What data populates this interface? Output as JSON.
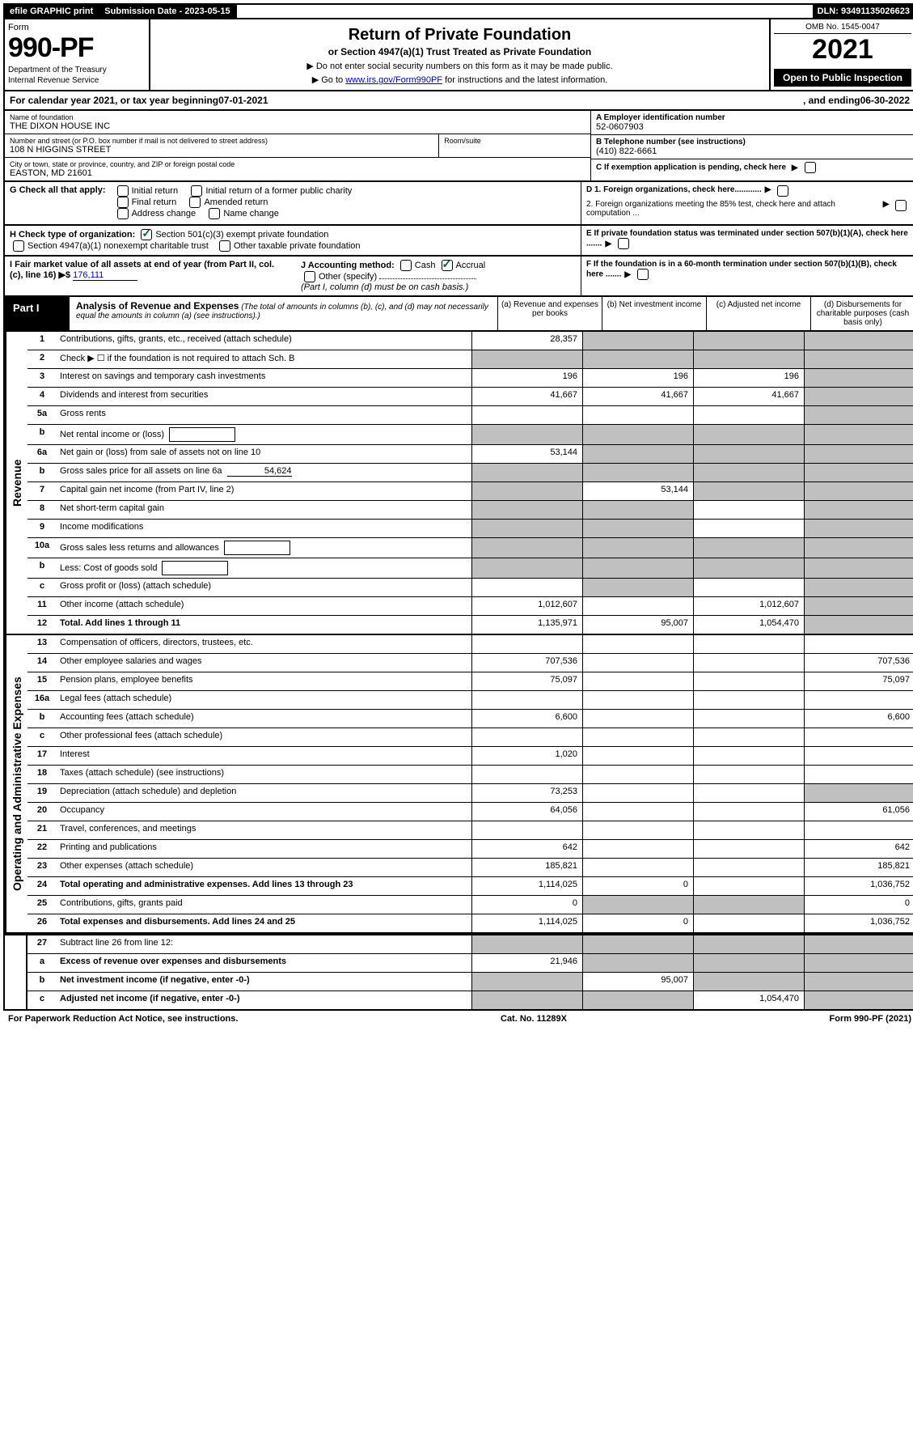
{
  "top_bar": {
    "efile": "efile GRAPHIC print",
    "submission": "Submission Date - 2023-05-15",
    "dln": "DLN: 93491135026623"
  },
  "header": {
    "form_label": "Form",
    "form_number": "990-PF",
    "dept1": "Department of the Treasury",
    "dept2": "Internal Revenue Service",
    "title": "Return of Private Foundation",
    "subtitle": "or Section 4947(a)(1) Trust Treated as Private Foundation",
    "instr1": "▶ Do not enter social security numbers on this form as it may be made public.",
    "instr2_pre": "▶ Go to ",
    "instr2_link": "www.irs.gov/Form990PF",
    "instr2_post": " for instructions and the latest information.",
    "omb": "OMB No. 1545-0047",
    "year": "2021",
    "open_public": "Open to Public Inspection"
  },
  "cal_year": {
    "text_pre": "For calendar year 2021, or tax year beginning ",
    "begin": "07-01-2021",
    "text_mid": " , and ending ",
    "end": "06-30-2022"
  },
  "foundation": {
    "name_label": "Name of foundation",
    "name": "THE DIXON HOUSE INC",
    "addr_label": "Number and street (or P.O. box number if mail is not delivered to street address)",
    "addr": "108 N HIGGINS STREET",
    "room_label": "Room/suite",
    "city_label": "City or town, state or province, country, and ZIP or foreign postal code",
    "city": "EASTON, MD  21601",
    "ein_label": "A Employer identification number",
    "ein": "52-0607903",
    "phone_label": "B Telephone number (see instructions)",
    "phone": "(410) 822-6661",
    "pending_label": "C If exemption application is pending, check here"
  },
  "g_section": {
    "label": "G Check all that apply:",
    "opts": [
      "Initial return",
      "Final return",
      "Address change",
      "Initial return of a former public charity",
      "Amended return",
      "Name change"
    ]
  },
  "d_section": {
    "d1": "D 1. Foreign organizations, check here............",
    "d2": "2. Foreign organizations meeting the 85% test, check here and attach computation ...",
    "e": "E If private foundation status was terminated under section 507(b)(1)(A), check here .......",
    "f": "F If the foundation is in a 60-month termination under section 507(b)(1)(B), check here ......."
  },
  "h_section": {
    "label": "H Check type of organization:",
    "opt1": "Section 501(c)(3) exempt private foundation",
    "opt2": "Section 4947(a)(1) nonexempt charitable trust",
    "opt3": "Other taxable private foundation"
  },
  "i_section": {
    "label": "I Fair market value of all assets at end of year (from Part II, col. (c), line 16) ▶$",
    "value": "176,111"
  },
  "j_section": {
    "label": "J Accounting method:",
    "cash": "Cash",
    "accrual": "Accrual",
    "other": "Other (specify)",
    "note": "(Part I, column (d) must be on cash basis.)"
  },
  "part1": {
    "label": "Part I",
    "title": "Analysis of Revenue and Expenses",
    "title_note": " (The total of amounts in columns (b), (c), and (d) may not necessarily equal the amounts in column (a) (see instructions).)",
    "col_a": "(a) Revenue and expenses per books",
    "col_b": "(b) Net investment income",
    "col_c": "(c) Adjusted net income",
    "col_d": "(d) Disbursements for charitable purposes (cash basis only)"
  },
  "side_labels": {
    "revenue": "Revenue",
    "expenses": "Operating and Administrative Expenses"
  },
  "rows": [
    {
      "num": "1",
      "desc": "Contributions, gifts, grants, etc., received (attach schedule)",
      "a": "28,357",
      "b": "",
      "c": "",
      "d": "",
      "a_grey": false,
      "b_grey": true,
      "c_grey": true,
      "d_grey": true
    },
    {
      "num": "2",
      "desc": "Check ▶ ☐ if the foundation is not required to attach Sch. B",
      "a": "",
      "b": "",
      "c": "",
      "d": "",
      "a_grey": true,
      "b_grey": true,
      "c_grey": true,
      "d_grey": true,
      "dots": true
    },
    {
      "num": "3",
      "desc": "Interest on savings and temporary cash investments",
      "a": "196",
      "b": "196",
      "c": "196",
      "d": "",
      "d_grey": true
    },
    {
      "num": "4",
      "desc": "Dividends and interest from securities",
      "a": "41,667",
      "b": "41,667",
      "c": "41,667",
      "d": "",
      "d_grey": true,
      "dots": true
    },
    {
      "num": "5a",
      "desc": "Gross rents",
      "a": "",
      "b": "",
      "c": "",
      "d": "",
      "d_grey": true,
      "dots": true
    },
    {
      "num": "b",
      "desc": "Net rental income or (loss)",
      "a": "",
      "b": "",
      "c": "",
      "d": "",
      "a_grey": true,
      "b_grey": true,
      "c_grey": true,
      "d_grey": true,
      "inline_box": true
    },
    {
      "num": "6a",
      "desc": "Net gain or (loss) from sale of assets not on line 10",
      "a": "53,144",
      "b": "",
      "c": "",
      "d": "",
      "b_grey": true,
      "c_grey": true,
      "d_grey": true
    },
    {
      "num": "b",
      "desc": "Gross sales price for all assets on line 6a",
      "a": "",
      "b": "",
      "c": "",
      "d": "",
      "a_grey": true,
      "b_grey": true,
      "c_grey": true,
      "d_grey": true,
      "inline_val": "54,624"
    },
    {
      "num": "7",
      "desc": "Capital gain net income (from Part IV, line 2)",
      "a": "",
      "b": "53,144",
      "c": "",
      "d": "",
      "a_grey": true,
      "c_grey": true,
      "d_grey": true,
      "dots": true
    },
    {
      "num": "8",
      "desc": "Net short-term capital gain",
      "a": "",
      "b": "",
      "c": "",
      "d": "",
      "a_grey": true,
      "b_grey": true,
      "d_grey": true,
      "dots": true
    },
    {
      "num": "9",
      "desc": "Income modifications",
      "a": "",
      "b": "",
      "c": "",
      "d": "",
      "a_grey": true,
      "b_grey": true,
      "d_grey": true,
      "dots": true
    },
    {
      "num": "10a",
      "desc": "Gross sales less returns and allowances",
      "a": "",
      "b": "",
      "c": "",
      "d": "",
      "a_grey": true,
      "b_grey": true,
      "c_grey": true,
      "d_grey": true,
      "inline_box": true
    },
    {
      "num": "b",
      "desc": "Less: Cost of goods sold",
      "a": "",
      "b": "",
      "c": "",
      "d": "",
      "a_grey": true,
      "b_grey": true,
      "c_grey": true,
      "d_grey": true,
      "inline_box": true,
      "dots": true
    },
    {
      "num": "c",
      "desc": "Gross profit or (loss) (attach schedule)",
      "a": "",
      "b": "",
      "c": "",
      "d": "",
      "b_grey": true,
      "d_grey": true,
      "dots": true
    },
    {
      "num": "11",
      "desc": "Other income (attach schedule)",
      "a": "1,012,607",
      "b": "",
      "c": "1,012,607",
      "d": "",
      "d_grey": true,
      "dots": true
    },
    {
      "num": "12",
      "desc": "Total. Add lines 1 through 11",
      "a": "1,135,971",
      "b": "95,007",
      "c": "1,054,470",
      "d": "",
      "d_grey": true,
      "bold": true,
      "dots": true
    }
  ],
  "expense_rows": [
    {
      "num": "13",
      "desc": "Compensation of officers, directors, trustees, etc.",
      "a": "",
      "b": "",
      "c": "",
      "d": ""
    },
    {
      "num": "14",
      "desc": "Other employee salaries and wages",
      "a": "707,536",
      "b": "",
      "c": "",
      "d": "707,536",
      "dots": true
    },
    {
      "num": "15",
      "desc": "Pension plans, employee benefits",
      "a": "75,097",
      "b": "",
      "c": "",
      "d": "75,097",
      "dots": true
    },
    {
      "num": "16a",
      "desc": "Legal fees (attach schedule)",
      "a": "",
      "b": "",
      "c": "",
      "d": "",
      "dots": true
    },
    {
      "num": "b",
      "desc": "Accounting fees (attach schedule)",
      "a": "6,600",
      "b": "",
      "c": "",
      "d": "6,600",
      "dots": true
    },
    {
      "num": "c",
      "desc": "Other professional fees (attach schedule)",
      "a": "",
      "b": "",
      "c": "",
      "d": "",
      "dots": true
    },
    {
      "num": "17",
      "desc": "Interest",
      "a": "1,020",
      "b": "",
      "c": "",
      "d": "",
      "dots": true
    },
    {
      "num": "18",
      "desc": "Taxes (attach schedule) (see instructions)",
      "a": "",
      "b": "",
      "c": "",
      "d": "",
      "dots": true
    },
    {
      "num": "19",
      "desc": "Depreciation (attach schedule) and depletion",
      "a": "73,253",
      "b": "",
      "c": "",
      "d": "",
      "d_grey": true,
      "dots": true
    },
    {
      "num": "20",
      "desc": "Occupancy",
      "a": "64,056",
      "b": "",
      "c": "",
      "d": "61,056",
      "dots": true
    },
    {
      "num": "21",
      "desc": "Travel, conferences, and meetings",
      "a": "",
      "b": "",
      "c": "",
      "d": "",
      "dots": true
    },
    {
      "num": "22",
      "desc": "Printing and publications",
      "a": "642",
      "b": "",
      "c": "",
      "d": "642",
      "dots": true
    },
    {
      "num": "23",
      "desc": "Other expenses (attach schedule)",
      "a": "185,821",
      "b": "",
      "c": "",
      "d": "185,821",
      "dots": true
    },
    {
      "num": "24",
      "desc": "Total operating and administrative expenses. Add lines 13 through 23",
      "a": "1,114,025",
      "b": "0",
      "c": "",
      "d": "1,036,752",
      "bold": true,
      "dots": true
    },
    {
      "num": "25",
      "desc": "Contributions, gifts, grants paid",
      "a": "0",
      "b": "",
      "c": "",
      "d": "0",
      "b_grey": true,
      "c_grey": true,
      "dots": true
    },
    {
      "num": "26",
      "desc": "Total expenses and disbursements. Add lines 24 and 25",
      "a": "1,114,025",
      "b": "0",
      "c": "",
      "d": "1,036,752",
      "bold": true
    }
  ],
  "final_rows": [
    {
      "num": "27",
      "desc": "Subtract line 26 from line 12:",
      "a": "",
      "b": "",
      "c": "",
      "d": "",
      "a_grey": true,
      "b_grey": true,
      "c_grey": true,
      "d_grey": true
    },
    {
      "num": "a",
      "desc": "Excess of revenue over expenses and disbursements",
      "a": "21,946",
      "b": "",
      "c": "",
      "d": "",
      "b_grey": true,
      "c_grey": true,
      "d_grey": true,
      "bold": true
    },
    {
      "num": "b",
      "desc": "Net investment income (if negative, enter -0-)",
      "a": "",
      "b": "95,007",
      "c": "",
      "d": "",
      "a_grey": true,
      "c_grey": true,
      "d_grey": true,
      "bold": true
    },
    {
      "num": "c",
      "desc": "Adjusted net income (if negative, enter -0-)",
      "a": "",
      "b": "",
      "c": "1,054,470",
      "d": "",
      "a_grey": true,
      "b_grey": true,
      "d_grey": true,
      "bold": true,
      "dots": true
    }
  ],
  "footer": {
    "left": "For Paperwork Reduction Act Notice, see instructions.",
    "center": "Cat. No. 11289X",
    "right": "Form 990-PF (2021)"
  },
  "colors": {
    "black": "#000000",
    "white": "#ffffff",
    "grey_fill": "#c0c0c0",
    "link": "#0000cc",
    "check_green": "#006633"
  }
}
